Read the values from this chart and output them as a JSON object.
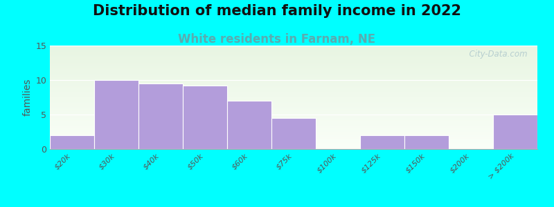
{
  "title": "Distribution of median family income in 2022",
  "subtitle": "White residents in Farnam, NE",
  "ylabel": "families",
  "categories": [
    "$20k",
    "$30k",
    "$40k",
    "$50k",
    "$60k",
    "$75k",
    "$100k",
    "$125k",
    "$150k",
    "$200k",
    "> $200k"
  ],
  "values": [
    2,
    10,
    9.5,
    9.2,
    7,
    4.5,
    0,
    2,
    2,
    0,
    5
  ],
  "bar_color": "#b39ddb",
  "background_color": "#00ffff",
  "plot_bg_color_top": "#e8f5e2",
  "plot_bg_color_bottom": "#f8fef5",
  "ylim": [
    0,
    15
  ],
  "yticks": [
    0,
    5,
    10,
    15
  ],
  "title_fontsize": 15,
  "subtitle_fontsize": 12,
  "ylabel_fontsize": 10,
  "watermark": "  City-Data.com"
}
